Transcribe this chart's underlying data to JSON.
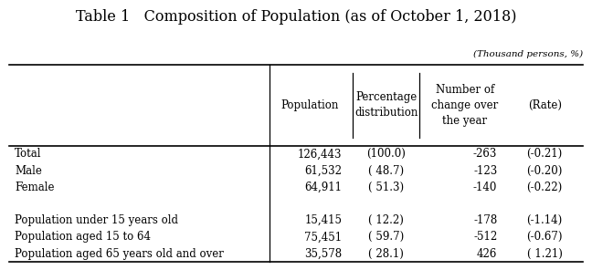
{
  "title": "Table 1   Composition of Population (as of October 1, 2018)",
  "unit_note": "(Thousand persons, %)",
  "col_headers_0": "Population",
  "col_headers_1": "Percentage\ndistribution",
  "col_headers_2": "Number of\nchange over\nthe year",
  "col_headers_3": "(Rate)",
  "row_labels": [
    "Total",
    "Male",
    "Female",
    "",
    "Population under 15 years old",
    "Population aged 15 to 64",
    "Population aged 65 years old and over"
  ],
  "data": [
    [
      "126,443",
      "(100.0)",
      "-263",
      "(-0.21)"
    ],
    [
      "61,532",
      "( 48.7)",
      "-123",
      "(-0.20)"
    ],
    [
      "64,911",
      "( 51.3)",
      "-140",
      "(-0.22)"
    ],
    [
      "",
      "",
      "",
      ""
    ],
    [
      "15,415",
      "( 12.2)",
      "-178",
      "(-1.14)"
    ],
    [
      "75,451",
      "( 59.7)",
      "-512",
      "(-0.67)"
    ],
    [
      "35,578",
      "( 28.1)",
      "426",
      "( 1.21)"
    ]
  ],
  "bg_color": "#ffffff",
  "text_color": "#000000",
  "font_size": 8.5,
  "title_font_size": 11.5
}
